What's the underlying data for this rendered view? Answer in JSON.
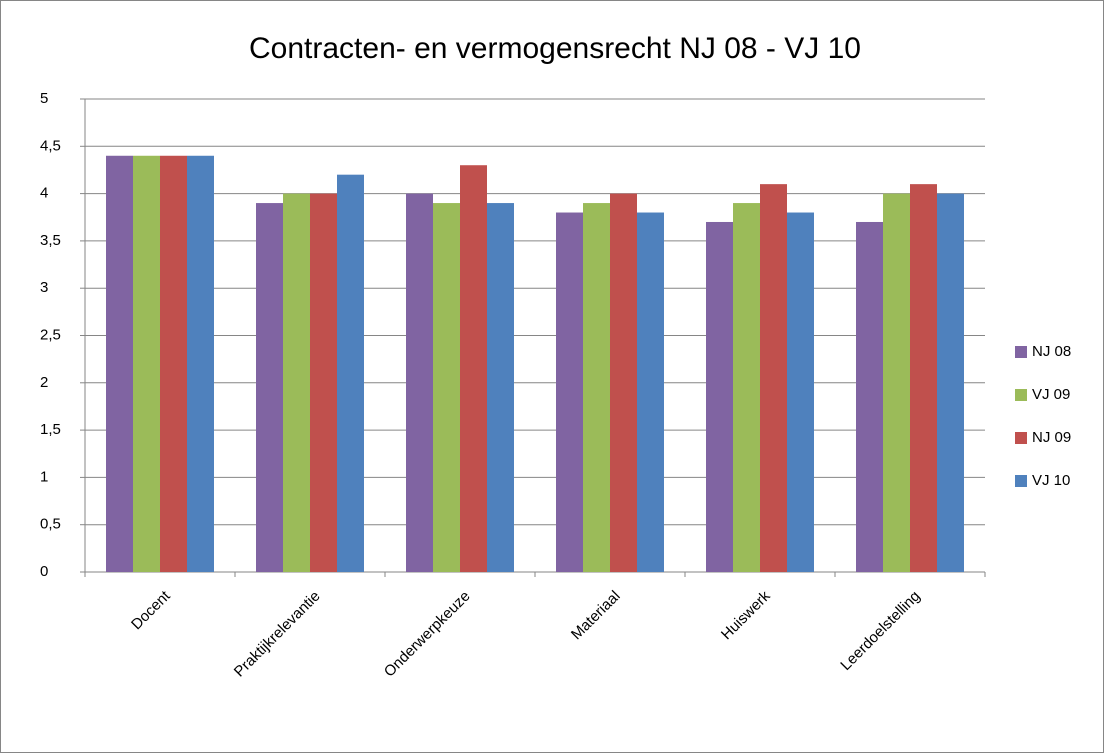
{
  "chart_data": {
    "type": "bar",
    "title": "Contracten- en vermogensrecht NJ 08 - VJ 10",
    "categories": [
      "Docent",
      "Praktijkrelevantie",
      "Onderwerpkeuze",
      "Materiaal",
      "Huiswerk",
      "Leerdoelstelling"
    ],
    "series": [
      {
        "name": "NJ 08",
        "color": "#8064a2",
        "values": [
          4.4,
          3.9,
          4.0,
          3.8,
          3.7,
          3.7
        ]
      },
      {
        "name": "VJ 09",
        "color": "#9bbb59",
        "values": [
          4.4,
          4.0,
          3.9,
          3.9,
          3.9,
          4.0
        ]
      },
      {
        "name": "NJ 09",
        "color": "#c0504d",
        "values": [
          4.4,
          4.0,
          4.3,
          4.0,
          4.1,
          4.1
        ]
      },
      {
        "name": "VJ 10",
        "color": "#4f81bd",
        "values": [
          4.4,
          4.2,
          3.9,
          3.8,
          3.8,
          4.0
        ]
      }
    ],
    "ylim": [
      0,
      5
    ],
    "yticks": [
      0,
      {
        "value": 0.5,
        "label": "0,5"
      },
      1,
      {
        "value": 1.5,
        "label": "1,5"
      },
      2,
      {
        "value": 2.5,
        "label": "2,5"
      },
      3,
      {
        "value": 3.5,
        "label": "3,5"
      },
      4,
      {
        "value": 4.5,
        "label": "4,5"
      },
      5
    ],
    "grid": true,
    "legend": "right"
  }
}
